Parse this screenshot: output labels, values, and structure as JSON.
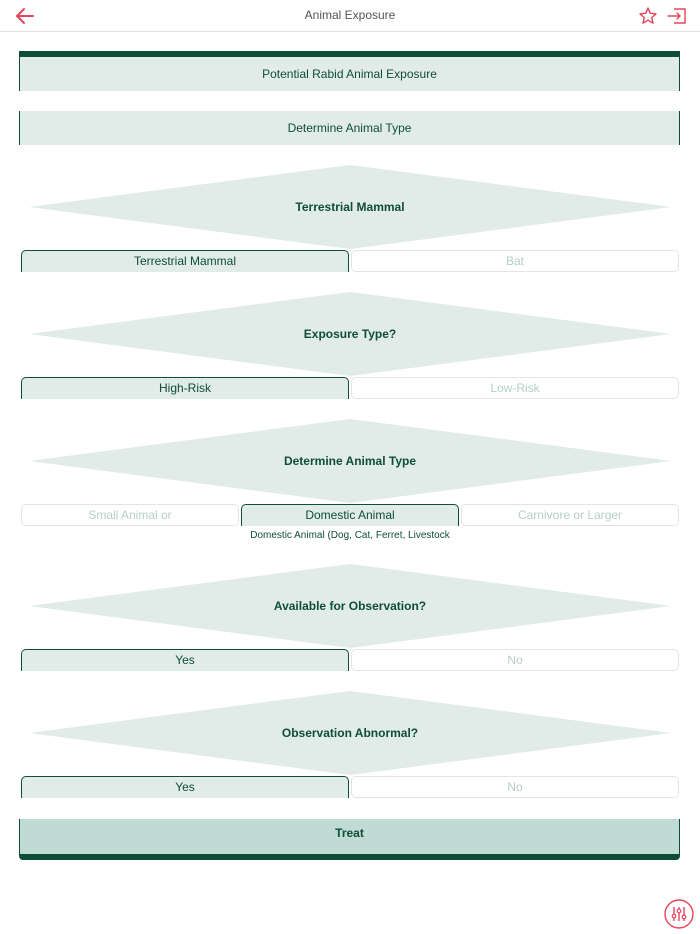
{
  "header": {
    "title": "Animal Exposure",
    "icons": {
      "back": "back-arrow-icon",
      "favorite": "star-icon",
      "exit": "exit-icon"
    }
  },
  "flow": {
    "start_box": "Potential Rabid Animal Exposure",
    "step_box": "Determine Animal Type",
    "q1": {
      "label": "Terrestrial Mammal",
      "options": [
        "Terrestrial Mammal",
        "Bat"
      ],
      "selected": 0
    },
    "q2": {
      "label": "Exposure Type?",
      "options": [
        "High-Risk",
        "Low-Risk"
      ],
      "selected": 0
    },
    "q3": {
      "label": "Determine Animal Type",
      "options": [
        "Small Animal or",
        "Domestic Animal",
        "Carnivore or Larger"
      ],
      "selected": 1,
      "note": "Domestic Animal (Dog, Cat, Ferret, Livestock"
    },
    "q4": {
      "label": "Available for Observation?",
      "options": [
        "Yes",
        "No"
      ],
      "selected": 0
    },
    "q5": {
      "label": "Observation Abnormal?",
      "options": [
        "Yes",
        "No"
      ],
      "selected": 0
    },
    "result": "Treat"
  },
  "colors": {
    "accent": "#0e4d38",
    "panel": "#e1ece8",
    "result_panel": "#c0dad4",
    "icon_red": "#e8445a",
    "muted_text": "#b4cfc5"
  },
  "fab": {
    "icon": "sliders-icon"
  }
}
